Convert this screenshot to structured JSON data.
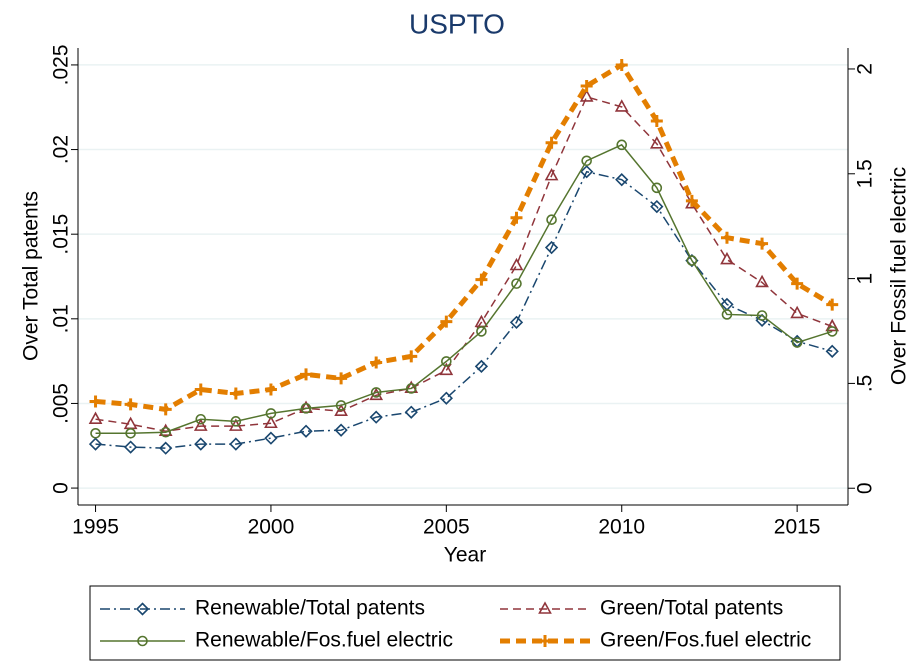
{
  "chart_data": {
    "type": "line",
    "title": "USPTO",
    "x_label": "Year",
    "y_label": "Over Total patents",
    "y2_label": "Over Fossil fuel electric",
    "x": [
      1995,
      1996,
      1997,
      1998,
      1999,
      2000,
      2001,
      2002,
      2003,
      2004,
      2005,
      2006,
      2007,
      2008,
      2009,
      2010,
      2011,
      2012,
      2013,
      2014,
      2015,
      2016
    ],
    "xlim": [
      1994.5,
      2016.45
    ],
    "xticks": [
      1995,
      2000,
      2005,
      2010,
      2015
    ],
    "ylim": [
      -0.001,
      0.026
    ],
    "yticks": [
      0,
      {
        "value": 0.005,
        "label": ".005"
      },
      {
        "value": 0.01,
        "label": ".01"
      },
      {
        "value": 0.015,
        "label": ".015"
      },
      {
        "value": 0.02,
        "label": ".02"
      },
      {
        "value": 0.025,
        "label": ".025"
      }
    ],
    "y2lim": [
      -0.08,
      2.1
    ],
    "y2ticks": [
      0,
      {
        "value": 0.5,
        "label": ".5"
      },
      1,
      1.5,
      2
    ],
    "grid": true,
    "series": [
      {
        "name": "Renewable/Total patents",
        "color": "#1a476f",
        "marker": "diamond",
        "line_style": "dashdot",
        "values": [
          0.0026,
          0.00242,
          0.00236,
          0.0026,
          0.0026,
          0.00295,
          0.00336,
          0.00342,
          0.00419,
          0.00448,
          0.00531,
          0.00719,
          0.00979,
          0.01421,
          0.01869,
          0.01822,
          0.01663,
          0.01344,
          0.01085,
          0.00991,
          0.00867,
          0.00808
        ]
      },
      {
        "name": "Green/Total patents",
        "color": "#90353b",
        "marker": "triangle",
        "line_style": "dash",
        "values": [
          0.00407,
          0.00377,
          0.00336,
          0.00366,
          0.00366,
          0.00383,
          0.00472,
          0.00454,
          0.00548,
          0.0059,
          0.00696,
          0.00979,
          0.01315,
          0.01846,
          0.02311,
          0.02252,
          0.02034,
          0.0168,
          0.0135,
          0.01215,
          0.01032,
          0.00955
        ]
      },
      {
        "name": "Renewable/Fos.fuel electric",
        "color": "#55752f",
        "marker": "circle",
        "line_style": "solid",
        "axis": "y2",
        "values": [
          0.262,
          0.262,
          0.267,
          0.329,
          0.319,
          0.357,
          0.381,
          0.395,
          0.457,
          0.476,
          0.605,
          0.748,
          0.976,
          1.281,
          1.562,
          1.638,
          1.433,
          1.086,
          0.829,
          0.824,
          0.695,
          0.748
        ]
      },
      {
        "name": "Green/Fos.fuel electric",
        "color": "#e37e00",
        "marker": "plus",
        "line_style": "thickdash",
        "axis": "y2",
        "values": [
          0.414,
          0.4,
          0.376,
          0.471,
          0.452,
          0.471,
          0.543,
          0.524,
          0.6,
          0.629,
          0.795,
          0.995,
          1.29,
          1.648,
          1.919,
          2.019,
          1.752,
          1.371,
          1.195,
          1.167,
          0.976,
          0.876
        ]
      }
    ]
  }
}
